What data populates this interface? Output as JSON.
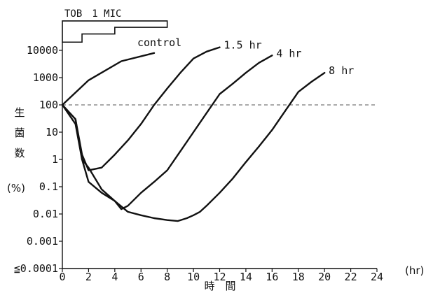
{
  "chart_data": {
    "type": "line",
    "title": "",
    "xlabel": "時　間",
    "xunit": "(hr)",
    "ylabel_chars": [
      "生",
      "菌",
      "数"
    ],
    "yunit": "(%)",
    "x_ticks": [
      "0",
      "2",
      "4",
      "6",
      "8",
      "10",
      "12",
      "14",
      "16",
      "18",
      "20",
      "22",
      "24"
    ],
    "y_ticks": [
      "≦0.0001",
      "0.001",
      "0.01",
      "0.1",
      "1",
      "10",
      "100",
      "1000",
      "10000"
    ],
    "y_tick_values": [
      0.0001,
      0.001,
      0.01,
      0.1,
      1,
      10,
      100,
      1000,
      10000
    ],
    "xlim": [
      0,
      24
    ],
    "ylim": [
      0.0001,
      10000
    ],
    "yscale": "log",
    "grid": false,
    "reference_line": {
      "y": 100,
      "style": "dashed"
    },
    "tob_label": "TOB　1 MIC",
    "tob_steps": [
      {
        "x": [
          0,
          1.5
        ],
        "top": 40000,
        "bottom": 20000
      },
      {
        "x": [
          1.5,
          4
        ],
        "top": 70000,
        "bottom": 40000
      },
      {
        "x": [
          4,
          8
        ],
        "top": 120000,
        "bottom": 70000
      }
    ],
    "series": [
      {
        "name": "control",
        "x": [
          0,
          2,
          4.5,
          7
        ],
        "y": [
          100,
          800,
          4000,
          8000
        ]
      },
      {
        "name": "1.5 hr",
        "x": [
          0,
          1,
          1.5,
          2,
          3,
          4,
          5,
          6,
          7,
          8,
          9,
          10,
          11,
          12
        ],
        "y": [
          100,
          30,
          1.5,
          0.4,
          0.5,
          1.5,
          5,
          20,
          100,
          400,
          1500,
          5000,
          9000,
          13000
        ]
      },
      {
        "name": "4 hr",
        "x": [
          0,
          1,
          1.5,
          2,
          3,
          4,
          4.5,
          5,
          6,
          7,
          8,
          9,
          10,
          11,
          12,
          13,
          14,
          15,
          16
        ],
        "y": [
          100,
          20,
          1,
          0.5,
          0.08,
          0.03,
          0.015,
          0.02,
          0.06,
          0.15,
          0.4,
          2,
          10,
          50,
          250,
          600,
          1500,
          3500,
          6500
        ]
      },
      {
        "name": "8 hr",
        "x": [
          0,
          1,
          1.5,
          2,
          3,
          4,
          5,
          6,
          7,
          8,
          8.8,
          9.5,
          10,
          10.5,
          11,
          12,
          13,
          14,
          15,
          16,
          17,
          18,
          19,
          20
        ],
        "y": [
          100,
          30,
          1,
          0.15,
          0.06,
          0.03,
          0.012,
          0.009,
          0.007,
          0.006,
          0.0055,
          0.007,
          0.009,
          0.012,
          0.02,
          0.06,
          0.2,
          0.8,
          3,
          12,
          60,
          300,
          700,
          1500
        ]
      }
    ]
  }
}
